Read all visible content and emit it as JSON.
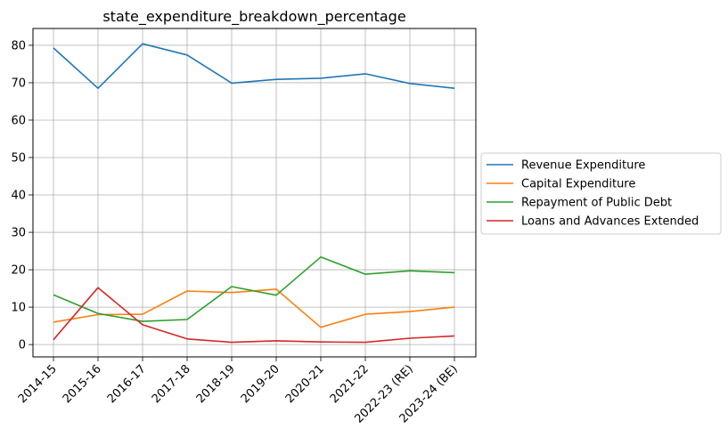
{
  "chart_data": {
    "type": "line",
    "title": "state_expenditure_breakdown_percentage",
    "xlabel": "",
    "ylabel": "",
    "categories": [
      "2014-15",
      "2015-16",
      "2016-17",
      "2017-18",
      "2018-19",
      "2019-20",
      "2020-21",
      "2021-22",
      "2022-23 (RE)",
      "2023-24 (BE)"
    ],
    "ylim": [
      -3.3,
      84.5
    ],
    "yticks": [
      "0",
      "10",
      "20",
      "30",
      "40",
      "50",
      "60",
      "70",
      "80"
    ],
    "grid": true,
    "legend_position": "center-right (outside plot)",
    "series": [
      {
        "name": "Revenue Expenditure",
        "color": "#1f77b4",
        "values": [
          79.3,
          68.5,
          80.4,
          77.4,
          69.9,
          70.9,
          71.2,
          72.4,
          69.8,
          68.5
        ]
      },
      {
        "name": "Capital Expenditure",
        "color": "#ff7f0e",
        "values": [
          6.0,
          8.0,
          8.1,
          14.3,
          13.9,
          14.8,
          4.6,
          8.1,
          8.8,
          10.0
        ]
      },
      {
        "name": "Repayment of Public Debt",
        "color": "#2ca02c",
        "values": [
          13.3,
          8.3,
          6.2,
          6.7,
          15.5,
          13.2,
          23.4,
          18.8,
          19.7,
          19.2
        ]
      },
      {
        "name": "Loans and Advances Extended",
        "color": "#d62728",
        "values": [
          1.3,
          15.2,
          5.3,
          1.5,
          0.6,
          1.0,
          0.7,
          0.6,
          1.7,
          2.3
        ]
      }
    ]
  }
}
